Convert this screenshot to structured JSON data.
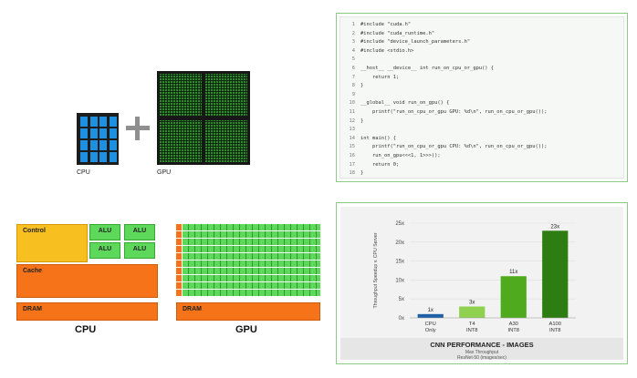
{
  "chips": {
    "cpu_label": "CPU",
    "gpu_label": "GPU"
  },
  "code": {
    "lines": [
      {
        "n": "1",
        "text": "#include \"cuda.h\""
      },
      {
        "n": "2",
        "text": "#include \"cuda_runtime.h\""
      },
      {
        "n": "3",
        "text": "#include \"device_launch_parameters.h\""
      },
      {
        "n": "4",
        "text": "#include <stdio.h>"
      },
      {
        "n": "5",
        "text": ""
      },
      {
        "n": "6",
        "text": "__host__ __device__ int run_on_cpu_or_gpu() {"
      },
      {
        "n": "7",
        "text": "    return 1;"
      },
      {
        "n": "8",
        "text": "}"
      },
      {
        "n": "9",
        "text": ""
      },
      {
        "n": "10",
        "text": "__global__ void run_on_gpu() {"
      },
      {
        "n": "11",
        "text": "    printf(\"run_on_cpu_or_gpu GPU: %d\\n\", run_on_cpu_or_gpu());"
      },
      {
        "n": "12",
        "text": "}"
      },
      {
        "n": "13",
        "text": ""
      },
      {
        "n": "14",
        "text": "int main() {"
      },
      {
        "n": "15",
        "text": "    printf(\"run_on_cpu_or_gpu CPU: %d\\n\", run_on_cpu_or_gpu());"
      },
      {
        "n": "16",
        "text": "    run_on_gpu<<<1, 1>>>();"
      },
      {
        "n": "17",
        "text": "    return 0;"
      },
      {
        "n": "18",
        "text": "}"
      }
    ]
  },
  "architecture": {
    "control": "Control",
    "alu": "ALU",
    "cache": "Cache",
    "dram": "DRAM",
    "cpu_label": "CPU",
    "gpu_label": "GPU"
  },
  "colors": {
    "accent_green": "#76b900",
    "cpu_bar": "#1f5fa8",
    "control": "#f7bf1f",
    "alu": "#5ed85a",
    "cache_dram": "#f7731a"
  },
  "chart_data": {
    "type": "bar",
    "title": "CNN PERFORMANCE - IMAGES",
    "subtitle_lines": [
      "Max Throughput",
      "ResNet-50 (images/sec)"
    ],
    "ylabel": "Throughput Speedup v. CPU Server",
    "yticks": [
      "0x",
      "5x",
      "10x",
      "15x",
      "20x",
      "25x"
    ],
    "ylim": [
      0,
      25
    ],
    "categories": [
      {
        "line1": "CPU",
        "line2": "Only"
      },
      {
        "line1": "T4",
        "line2": "INT8"
      },
      {
        "line1": "A30",
        "line2": "INT8"
      },
      {
        "line1": "A100",
        "line2": "INT8"
      }
    ],
    "values": [
      1,
      3,
      11,
      23
    ],
    "value_labels": [
      "1x",
      "3x",
      "11x",
      "23x"
    ],
    "bar_colors": [
      "#1f5fa8",
      "#8fd14f",
      "#4faa1e",
      "#2e7d12"
    ],
    "grid": true
  }
}
